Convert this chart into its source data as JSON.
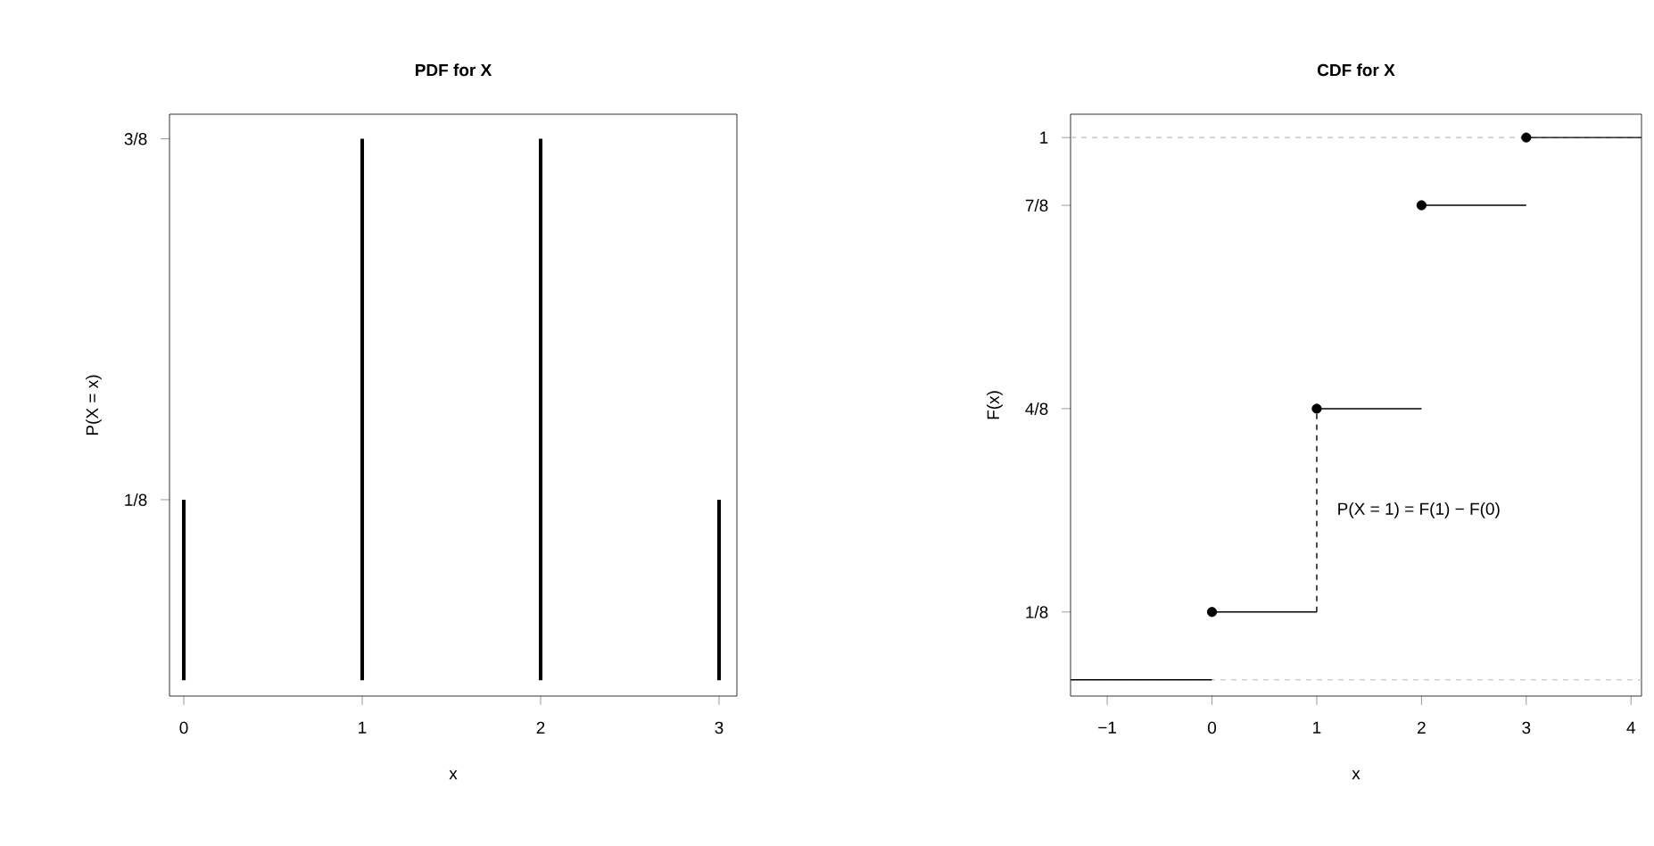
{
  "chart_data": [
    {
      "type": "bar",
      "title": "PDF for X",
      "xlabel": "x",
      "ylabel": "P(X = x)",
      "x": [
        0,
        1,
        2,
        3
      ],
      "values": [
        0.125,
        0.375,
        0.375,
        0.125
      ],
      "color": "#000000",
      "xlim": [
        -0.08,
        3.1
      ],
      "ylim": [
        -0.011,
        0.392
      ],
      "xticks": [
        0,
        1,
        2,
        3
      ],
      "yticks": [
        {
          "value": 0.125,
          "label": "1/8"
        },
        {
          "value": 0.375,
          "label": "3/8"
        }
      ]
    },
    {
      "type": "line",
      "title": "CDF for X",
      "xlabel": "x",
      "ylabel": "F(x)",
      "series": [
        {
          "type": "line",
          "color": "#000000",
          "x": [
            -1.35,
            0
          ],
          "values": [
            0,
            0
          ]
        },
        {
          "type": "line",
          "color": "#000000",
          "x": [
            0,
            1
          ],
          "values": [
            0.125,
            0.125
          ]
        },
        {
          "type": "line",
          "color": "#000000",
          "x": [
            1,
            2
          ],
          "values": [
            0.5,
            0.5
          ]
        },
        {
          "type": "line",
          "color": "#000000",
          "x": [
            2,
            3
          ],
          "values": [
            0.875,
            0.875
          ]
        },
        {
          "type": "line",
          "color": "#000000",
          "x": [
            3,
            4.1
          ],
          "values": [
            1,
            1
          ]
        },
        {
          "type": "line",
          "color": "#000000",
          "line_style": "dashed",
          "x": [
            1,
            1
          ],
          "values": [
            0.125,
            0.5
          ]
        },
        {
          "type": "scatter",
          "color": "#000000",
          "marker": "circle",
          "x": [
            0,
            1,
            2,
            3
          ],
          "values": [
            0.125,
            0.5,
            0.875,
            1
          ]
        }
      ],
      "xlim": [
        -1.35,
        4.1
      ],
      "ylim": [
        -0.03,
        1.043
      ],
      "xticks": [
        {
          "value": -1,
          "label": "−1"
        },
        0,
        1,
        2,
        3,
        4
      ],
      "yticks": [
        {
          "value": 0.125,
          "label": "1/8"
        },
        {
          "value": 0.5,
          "label": "4/8"
        },
        {
          "value": 0.875,
          "label": "7/8"
        },
        {
          "value": 1,
          "label": "1"
        }
      ],
      "ref_lines": [
        {
          "axis": "y",
          "value": 0,
          "color": "#bebebe",
          "line_style": "dashed"
        },
        {
          "axis": "y",
          "value": 1,
          "color": "#bebebe",
          "line_style": "dashed"
        }
      ],
      "annotations": [
        {
          "text": "P(X = 1) =  F(1) − F(0)",
          "x": 1,
          "y": 0.3125
        }
      ],
      "grid": false
    }
  ]
}
